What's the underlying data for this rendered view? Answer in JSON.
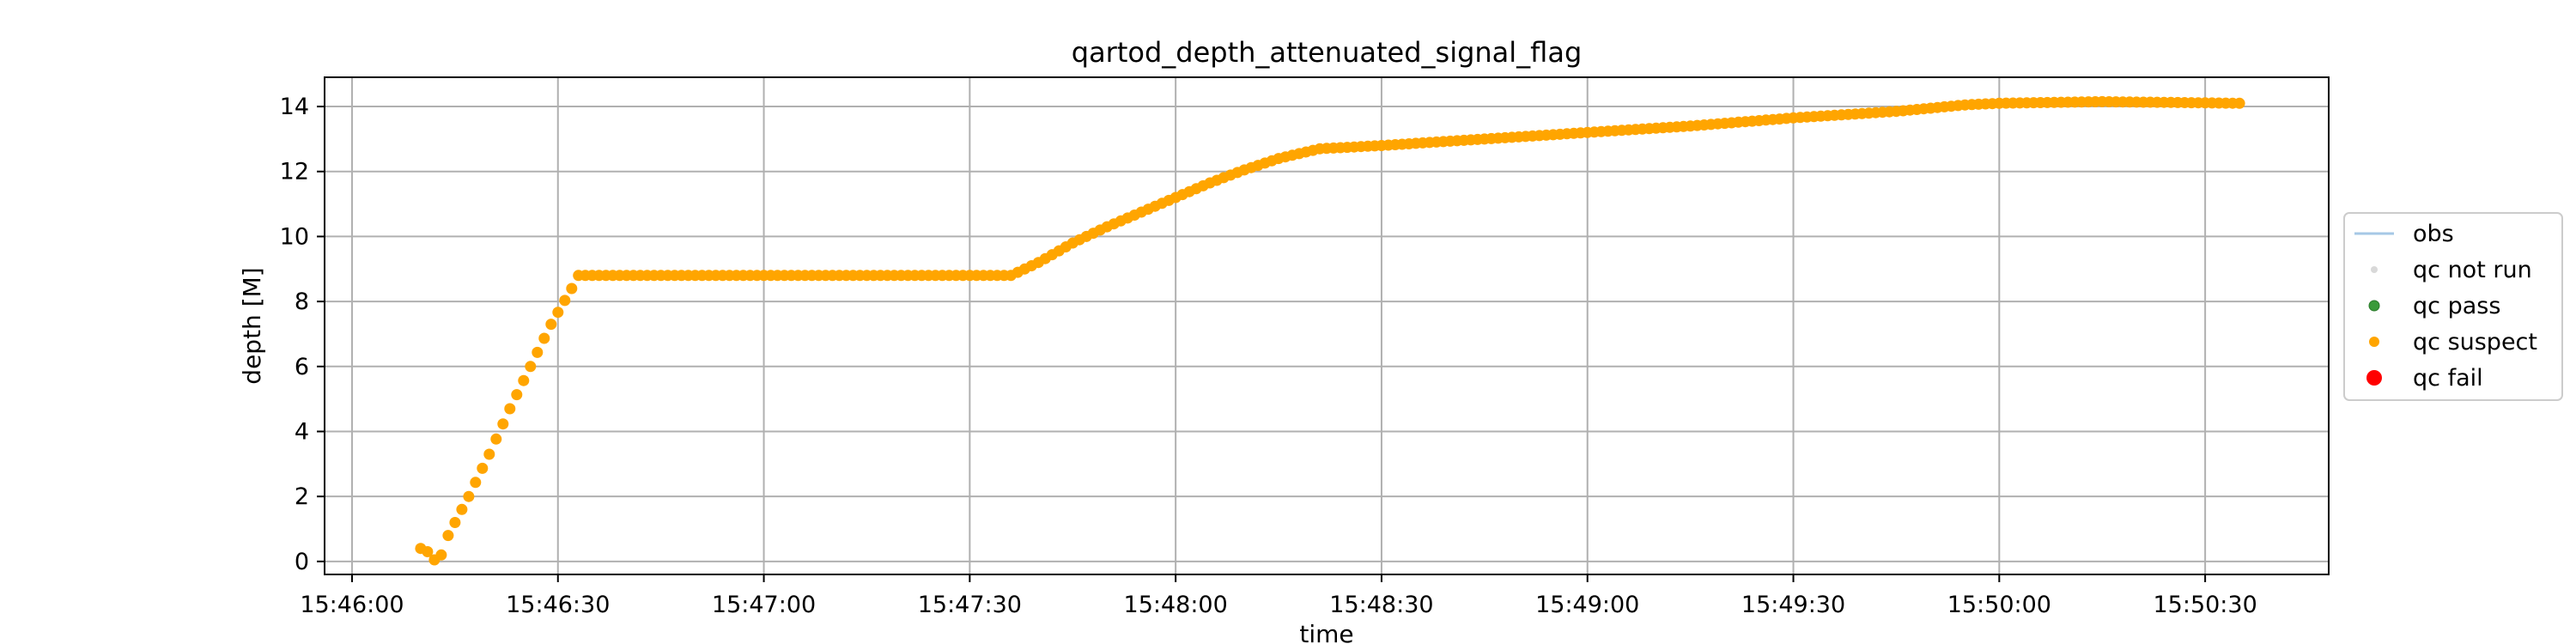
{
  "chart_data": {
    "type": "scatter",
    "title": "qartod_depth_attenuated_signal_flag",
    "xlabel": "time",
    "ylabel": "depth [M]",
    "x_ticks": [
      "15:46:00",
      "15:46:30",
      "15:47:00",
      "15:47:30",
      "15:48:00",
      "15:48:30",
      "15:49:00",
      "15:49:30",
      "15:50:00",
      "15:50:30"
    ],
    "y_ticks": [
      "0",
      "2",
      "4",
      "6",
      "8",
      "10",
      "12",
      "14"
    ],
    "xlim": [
      "15:45:56",
      "15:50:48"
    ],
    "ylim": [
      -0.4,
      14.9
    ],
    "grid": true,
    "legend_position": "right",
    "legend": [
      {
        "label": "obs",
        "kind": "line",
        "color": "#a6c8e6"
      },
      {
        "label": "qc not run",
        "kind": "dot",
        "color": "#d9d9d9"
      },
      {
        "label": "qc pass",
        "kind": "dot",
        "color": "#3a9a3a"
      },
      {
        "label": "qc suspect",
        "kind": "dot",
        "color": "#ffa500"
      },
      {
        "label": "qc fail",
        "kind": "dot",
        "color": "#ff0000"
      }
    ],
    "series": [
      {
        "name": "qc suspect",
        "color": "#ffa500",
        "points": [
          [
            "15:46:10",
            0.4
          ],
          [
            "15:46:11",
            0.3
          ],
          [
            "15:46:12",
            0.05
          ],
          [
            "15:46:13",
            0.2
          ],
          [
            "15:46:14",
            0.8
          ],
          [
            "15:46:17",
            2.0
          ],
          [
            "15:46:20",
            3.3
          ],
          [
            "15:46:23",
            4.7
          ],
          [
            "15:46:26",
            6.0
          ],
          [
            "15:46:29",
            7.3
          ],
          [
            "15:46:32",
            8.4
          ],
          [
            "15:46:33",
            8.8
          ],
          [
            "15:46:40",
            8.8
          ],
          [
            "15:47:00",
            8.8
          ],
          [
            "15:47:20",
            8.8
          ],
          [
            "15:47:36",
            8.8
          ],
          [
            "15:47:40",
            9.2
          ],
          [
            "15:47:45",
            9.8
          ],
          [
            "15:47:50",
            10.3
          ],
          [
            "15:47:55",
            10.75
          ],
          [
            "15:48:00",
            11.2
          ],
          [
            "15:48:05",
            11.65
          ],
          [
            "15:48:10",
            12.05
          ],
          [
            "15:48:15",
            12.4
          ],
          [
            "15:48:21",
            12.7
          ],
          [
            "15:48:30",
            12.8
          ],
          [
            "15:48:45",
            13.0
          ],
          [
            "15:49:00",
            13.2
          ],
          [
            "15:49:15",
            13.4
          ],
          [
            "15:49:30",
            13.65
          ],
          [
            "15:49:45",
            13.85
          ],
          [
            "15:49:55",
            14.05
          ],
          [
            "15:50:00",
            14.1
          ],
          [
            "15:50:15",
            14.15
          ],
          [
            "15:50:35",
            14.1
          ]
        ]
      }
    ]
  }
}
